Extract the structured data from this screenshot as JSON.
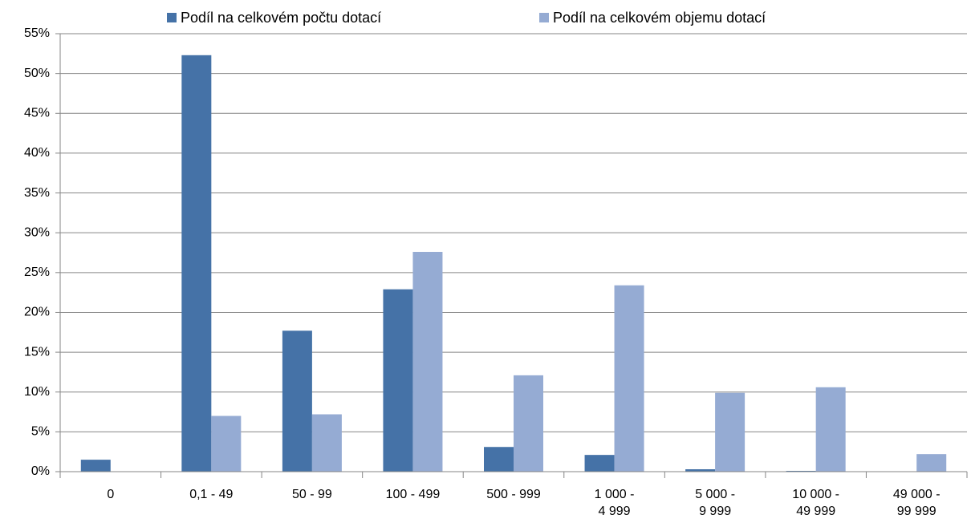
{
  "chart_data": {
    "type": "bar",
    "categories": [
      "0",
      "0,1 - 49",
      "50 - 99",
      "100 - 499",
      "500 - 999",
      "1 000 -\n4 999",
      "5 000 -\n9 999",
      "10 000 -\n49 999",
      "49 000 -\n99 999"
    ],
    "series": [
      {
        "name": "Podíl na celkovém počtu dotací",
        "color": "#4572a7",
        "values": [
          1.5,
          52.3,
          17.7,
          22.9,
          3.1,
          2.1,
          0.3,
          0.1,
          0
        ]
      },
      {
        "name": "Podíl na celkovém objemu dotací",
        "color": "#95abd3",
        "values": [
          0,
          7.0,
          7.2,
          27.6,
          12.1,
          23.4,
          9.9,
          10.6,
          2.2
        ]
      }
    ],
    "ylim": [
      0,
      55
    ],
    "yticks": [
      {
        "value": 0,
        "label": "0%"
      },
      {
        "value": 5,
        "label": "5%"
      },
      {
        "value": 10,
        "label": "10%"
      },
      {
        "value": 15,
        "label": "15%"
      },
      {
        "value": 20,
        "label": "20%"
      },
      {
        "value": 25,
        "label": "25%"
      },
      {
        "value": 30,
        "label": "30%"
      },
      {
        "value": 35,
        "label": "35%"
      },
      {
        "value": 40,
        "label": "40%"
      },
      {
        "value": 45,
        "label": "45%"
      },
      {
        "value": 50,
        "label": "50%"
      },
      {
        "value": 55,
        "label": "55%"
      }
    ],
    "grid": true,
    "legend": "top"
  }
}
